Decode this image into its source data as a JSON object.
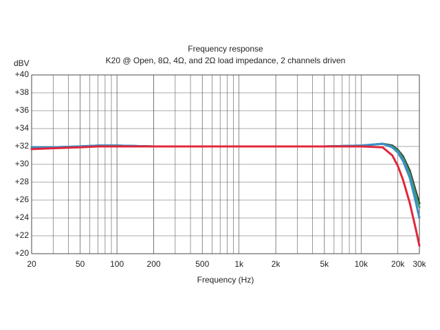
{
  "chart_data": {
    "type": "line",
    "title": "Frequency response",
    "subtitle": "K20 @ Open, 8Ω, 4Ω, and 2Ω load impedance, 2 channels driven",
    "ylabel": "dBV",
    "xlabel": "Frequency (Hz)",
    "xscale": "log",
    "grid": true,
    "xlim": [
      20,
      30000
    ],
    "xticks": [
      20,
      50,
      100,
      200,
      500,
      {
        "value": 1000,
        "label": "1k"
      },
      {
        "value": 2000,
        "label": "2k"
      },
      {
        "value": 5000,
        "label": "5k"
      },
      {
        "value": 10000,
        "label": "10k"
      },
      {
        "value": 20000,
        "label": "20k"
      },
      {
        "value": 30000,
        "label": "30k"
      }
    ],
    "ylim": [
      20,
      40
    ],
    "yticks": [
      {
        "value": 40,
        "label": "+40"
      },
      {
        "value": 38,
        "label": "+38"
      },
      {
        "value": 36,
        "label": "+36"
      },
      {
        "value": 34,
        "label": "+34"
      },
      {
        "value": 32,
        "label": "+32"
      },
      {
        "value": 30,
        "label": "+30"
      },
      {
        "value": 28,
        "label": "+28"
      },
      {
        "value": 26,
        "label": "+26"
      },
      {
        "value": 24,
        "label": "+24"
      },
      {
        "value": 22,
        "label": "+22"
      },
      {
        "value": 20,
        "label": "+20"
      }
    ],
    "x": [
      20,
      30,
      50,
      70,
      100,
      200,
      500,
      1000,
      2000,
      5000,
      10000,
      15000,
      18000,
      20000,
      22000,
      25000,
      28000,
      30000
    ],
    "series": [
      {
        "color": "#2b2b2b",
        "values": [
          31.9,
          31.9,
          32.0,
          32.1,
          32.1,
          32.0,
          32.0,
          32.0,
          32.0,
          32.0,
          32.1,
          32.3,
          32.1,
          31.6,
          30.9,
          29.3,
          27.0,
          25.6
        ]
      },
      {
        "color": "#3d9a6e",
        "values": [
          31.9,
          31.9,
          32.0,
          32.1,
          32.1,
          32.0,
          32.0,
          32.0,
          32.0,
          32.0,
          32.1,
          32.3,
          32.0,
          31.5,
          30.7,
          29.0,
          26.6,
          25.2
        ]
      },
      {
        "color": "#3b8fc8",
        "values": [
          31.9,
          31.9,
          32.0,
          32.1,
          32.1,
          32.0,
          32.0,
          32.0,
          32.0,
          32.0,
          32.1,
          32.3,
          31.9,
          31.3,
          30.4,
          28.5,
          25.8,
          24.0
        ]
      },
      {
        "color": "#e0263a",
        "values": [
          31.7,
          31.8,
          31.9,
          32.0,
          32.0,
          32.0,
          32.0,
          32.0,
          32.0,
          32.0,
          32.0,
          31.9,
          31.0,
          29.8,
          28.3,
          25.7,
          22.8,
          20.9
        ]
      }
    ]
  }
}
